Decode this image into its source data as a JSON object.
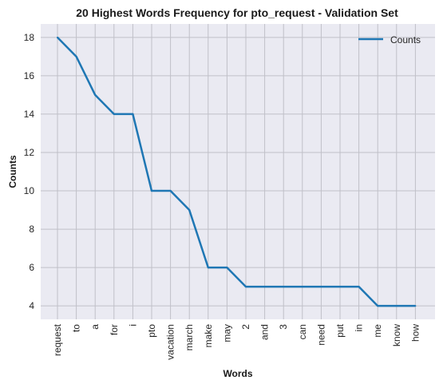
{
  "chart_data": {
    "type": "line",
    "title": "20 Highest Words Frequency for pto_request - Validation Set",
    "xlabel": "Words",
    "ylabel": "Counts",
    "categories": [
      "request",
      "to",
      "a",
      "for",
      "i",
      "pto",
      "vacation",
      "march",
      "make",
      "may",
      "2",
      "and",
      "3",
      "can",
      "need",
      "put",
      "in",
      "me",
      "know",
      "how"
    ],
    "series": [
      {
        "name": "Counts",
        "values": [
          18,
          17,
          15,
          14,
          14,
          10,
          10,
          9,
          6,
          6,
          5,
          5,
          5,
          5,
          5,
          5,
          5,
          4,
          4,
          4
        ]
      }
    ],
    "yticks": [
      4,
      6,
      8,
      10,
      12,
      14,
      16,
      18
    ],
    "ylim": [
      3.3,
      18.7
    ],
    "grid": true,
    "legend_position": "top-right",
    "colors": {
      "line": "#1f77b4",
      "plot_bg": "#eaeaf2",
      "grid": "#c0c0c8"
    }
  }
}
